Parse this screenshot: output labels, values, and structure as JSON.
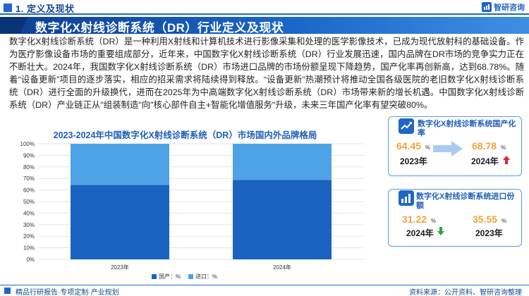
{
  "header": {
    "section_title": "1. 定义及现状",
    "logo_text": "智研咨询"
  },
  "banner": {
    "title": "数字化X射线诊断系统（DR）行业定义及现状"
  },
  "paragraph": "数字化X射线诊断系统（DR）是一种利用X射线和计算机技术进行影像采集和处理的医学影像技术，已成为现代放射科的基础设备。作为医疗影像设备市场的重要组成部分，近年来，中国数字化X射线诊断系统（DR）行业发展迅速，国内品牌在DR市场的竞争实力正在不断壮大。2024年，我国数字化X射线诊断系统（DR）市场进口品牌的市场份额呈现下降趋势，国产化率再创新高，达到68.78%。随着“设备更新”项目的逐步落实，相应的招采需求将陆续得到释放。“设备更新”热潮预计将推动全国各级医院的老旧数字化X射线诊断系统（DR）进行全面的升级换代，进而在2025年为中高端数字化X射线诊断系统（DR）市场带来新的增长机遇。中国数字化X射线诊断系统（DR）产业链正从\"组装制造\"向\"核心部件自主+智能化增值服务\"升级，未来三年国产化率有望突破80%。",
  "chart_data": {
    "type": "bar",
    "stacked": true,
    "title": "2023-2024年中国数字化X射线诊断系统（DR）市场国内外品牌格局",
    "categories": [
      "2023年",
      "2024年"
    ],
    "series": [
      {
        "name": "国产：%",
        "values": [
          64.45,
          68.78
        ],
        "color": "#1a63bf"
      },
      {
        "name": "进口：%",
        "values": [
          35.55,
          31.22
        ],
        "color": "#4ea3e6"
      }
    ],
    "yticks": [
      "0%",
      "10%",
      "20%",
      "30%",
      "40%",
      "50%",
      "60%",
      "70%",
      "80%",
      "90%",
      "100%"
    ],
    "ylim": [
      0,
      100
    ],
    "grid": true,
    "legend": "bottom"
  },
  "card_domestic": {
    "title": "数字化X射线诊断系统国产化率",
    "value_2023": "64.45",
    "value_2024": "68.78",
    "unit": "%",
    "year_2023": "2023年",
    "year_2024": "2024年",
    "trend": "up"
  },
  "card_import": {
    "title": "数字化X射线诊断系统进口份额",
    "value_2024": "31.22",
    "value_2023": "35.55",
    "unit": "%",
    "year_2024": "2024年",
    "year_2023": "2023年",
    "trend": "down"
  },
  "footer": {
    "left": "精品行研报告·专项定制·产业规划",
    "right": "资料来源：公开资料、智研咨询整理"
  },
  "watermark": "智研咨询",
  "colors": {
    "primary": "#1f66c8",
    "domestic": "#1a63bf",
    "import": "#4ea3e6",
    "highlight": "#f0a43a",
    "up": "#d9262c",
    "down": "#27a844"
  }
}
